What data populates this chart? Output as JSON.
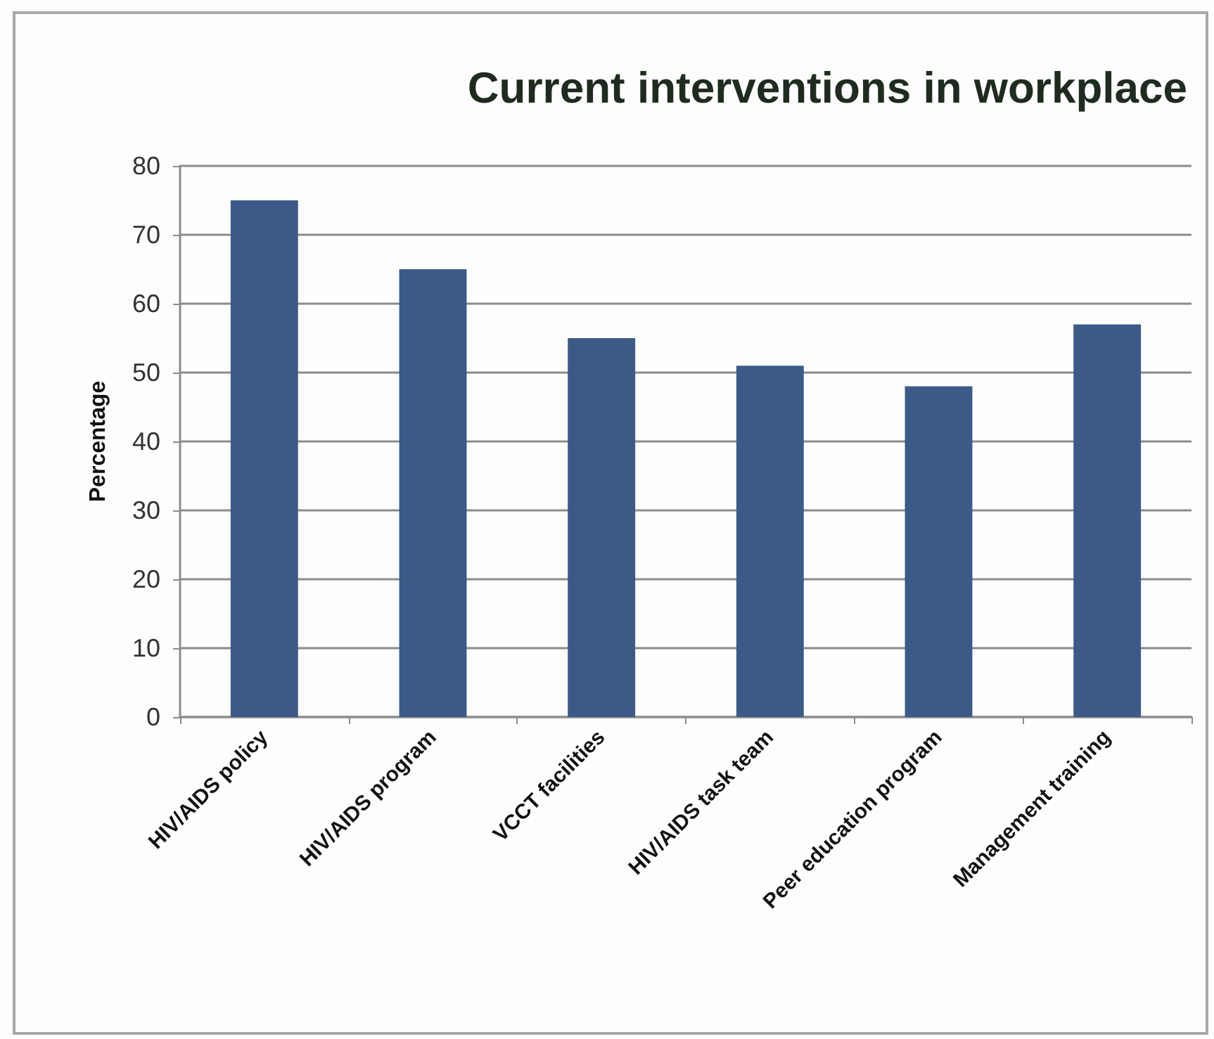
{
  "chart_data": {
    "type": "bar",
    "title": "Current interventions in workplace",
    "ylabel": "Percentage",
    "categories": [
      "HIV/AIDS policy",
      "HIV/AIDS program",
      "VCCT facilities",
      "HIV/AIDS task team",
      "Peer education program",
      "Management training"
    ],
    "values": [
      75,
      65,
      55,
      51,
      48,
      57
    ],
    "color": "#3b5a87",
    "ylim": [
      0,
      80
    ],
    "yticks": [
      0,
      10,
      20,
      30,
      40,
      50,
      60,
      70,
      80
    ],
    "grid": "y"
  }
}
